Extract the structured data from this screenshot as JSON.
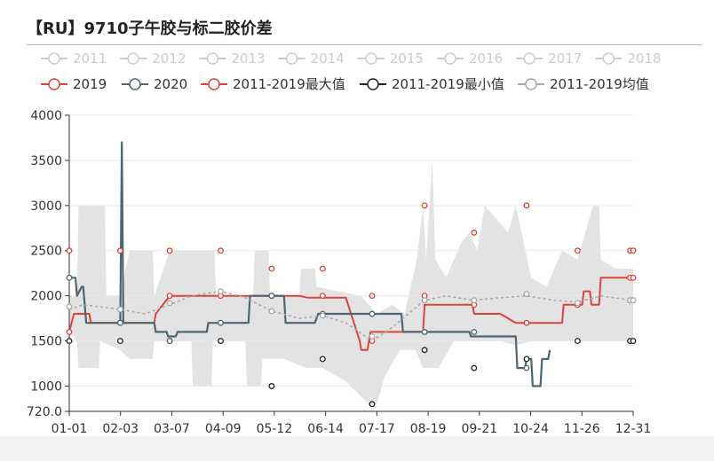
{
  "title": "【RU】9710子午胶与标二胶价差",
  "colors": {
    "s2019": "#d9453a",
    "s2020": "#4f6570",
    "max": "#d9453a",
    "min": "#222222",
    "avg": "#a9a9a9",
    "band": "#e3e3e3",
    "disabled": "#cccccc",
    "legend_text": "#333333",
    "legend_text_disabled": "#cccccc"
  },
  "legend_row1": [
    "2011",
    "2012",
    "2013",
    "2014",
    "2015",
    "2016",
    "2017",
    "2018"
  ],
  "legend_row2": [
    "2019",
    "2020",
    "2011-2019最大值",
    "2011-2019最小值",
    "2011-2019均值"
  ],
  "chart_data": {
    "type": "line",
    "title": "【RU】9710子午胶与标二胶价差",
    "xlabel": "",
    "ylabel": "",
    "x_tick_labels": [
      "01-01",
      "02-03",
      "03-07",
      "04-09",
      "05-12",
      "06-14",
      "07-17",
      "08-19",
      "09-21",
      "10-24",
      "11-26",
      "12-31"
    ],
    "y_ticks": [
      720,
      1000,
      1500,
      2000,
      2500,
      3000,
      3500,
      4000
    ],
    "y_tick_labels": [
      "720.0",
      "1000",
      "1500",
      "2000",
      "2500",
      "3000",
      "3500",
      "4000"
    ],
    "ylim": [
      720,
      4000
    ],
    "x_unit": "day_of_year",
    "xlim": [
      1,
      366
    ],
    "grid": true,
    "legend_position": "top",
    "series": [
      {
        "name": "2019",
        "key": "s2019",
        "points": [
          [
            1,
            1600
          ],
          [
            4,
            1800
          ],
          [
            14,
            1800
          ],
          [
            15,
            1700
          ],
          [
            34,
            1700
          ],
          [
            56,
            1700
          ],
          [
            57,
            1800
          ],
          [
            66,
            2000
          ],
          [
            90,
            2000
          ],
          [
            122,
            2000
          ],
          [
            150,
            2000
          ],
          [
            155,
            1980
          ],
          [
            180,
            1980
          ],
          [
            189,
            1500
          ],
          [
            190,
            1400
          ],
          [
            194,
            1400
          ],
          [
            195,
            1500
          ],
          [
            196,
            1600
          ],
          [
            216,
            1600
          ],
          [
            230,
            1600
          ],
          [
            231,
            1900
          ],
          [
            242,
            1900
          ],
          [
            262,
            1900
          ],
          [
            263,
            1800
          ],
          [
            280,
            1800
          ],
          [
            290,
            1700
          ],
          [
            301,
            1700
          ],
          [
            320,
            1700
          ],
          [
            321,
            1900
          ],
          [
            333,
            1900
          ],
          [
            334,
            2050
          ],
          [
            338,
            2050
          ],
          [
            339,
            1900
          ],
          [
            344,
            1900
          ],
          [
            345,
            2200
          ],
          [
            366,
            2200
          ]
        ]
      },
      {
        "name": "2020",
        "key": "s2020",
        "points": [
          [
            1,
            2200
          ],
          [
            5,
            2200
          ],
          [
            6,
            2000
          ],
          [
            9,
            2100
          ],
          [
            10,
            2100
          ],
          [
            12,
            1700
          ],
          [
            34,
            1700
          ],
          [
            35,
            3700
          ],
          [
            36,
            1700
          ],
          [
            56,
            1700
          ],
          [
            57,
            1600
          ],
          [
            64,
            1600
          ],
          [
            65,
            1550
          ],
          [
            70,
            1550
          ],
          [
            71,
            1600
          ],
          [
            90,
            1600
          ],
          [
            91,
            1700
          ],
          [
            117,
            1700
          ],
          [
            118,
            2000
          ],
          [
            140,
            2000
          ],
          [
            141,
            1700
          ],
          [
            160,
            1700
          ],
          [
            162,
            1800
          ],
          [
            216,
            1800
          ],
          [
            217,
            1600
          ],
          [
            245,
            1600
          ],
          [
            260,
            1600
          ],
          [
            261,
            1550
          ],
          [
            290,
            1550
          ],
          [
            291,
            1200
          ],
          [
            296,
            1200
          ],
          [
            297,
            1300
          ],
          [
            300,
            1300
          ],
          [
            301,
            1000
          ],
          [
            306,
            1000
          ],
          [
            307,
            1300
          ],
          [
            311,
            1300
          ],
          [
            312,
            1400
          ]
        ]
      },
      {
        "name": "2011-2019最大值",
        "key": "max",
        "points": [
          [
            1,
            2500
          ],
          [
            34,
            2500
          ],
          [
            66,
            2500
          ],
          [
            99,
            2500
          ],
          [
            132,
            2300
          ],
          [
            165,
            2300
          ],
          [
            197,
            2000
          ],
          [
            231,
            3000
          ],
          [
            263,
            2700
          ],
          [
            297,
            3000
          ],
          [
            330,
            2500
          ],
          [
            364,
            2500
          ],
          [
            366,
            2500
          ]
        ]
      },
      {
        "name": "2011-2019最小值",
        "key": "min",
        "points": [
          [
            1,
            1500
          ],
          [
            34,
            1500
          ],
          [
            66,
            1500
          ],
          [
            99,
            1500
          ],
          [
            132,
            1000
          ],
          [
            165,
            1300
          ],
          [
            197,
            800
          ],
          [
            231,
            1400
          ],
          [
            263,
            1200
          ],
          [
            297,
            1300
          ],
          [
            330,
            1500
          ],
          [
            364,
            1500
          ],
          [
            366,
            1500
          ]
        ]
      },
      {
        "name": "2011-2019均值",
        "key": "avg",
        "points": [
          [
            1,
            1850
          ],
          [
            10,
            1900
          ],
          [
            20,
            1880
          ],
          [
            34,
            1850
          ],
          [
            50,
            1800
          ],
          [
            66,
            1900
          ],
          [
            80,
            2000
          ],
          [
            99,
            2050
          ],
          [
            115,
            1980
          ],
          [
            132,
            1830
          ],
          [
            150,
            1750
          ],
          [
            165,
            1780
          ],
          [
            180,
            1700
          ],
          [
            197,
            1500
          ],
          [
            210,
            1650
          ],
          [
            231,
            1950
          ],
          [
            245,
            2000
          ],
          [
            263,
            1950
          ],
          [
            280,
            1980
          ],
          [
            297,
            2000
          ],
          [
            315,
            1950
          ],
          [
            330,
            1930
          ],
          [
            345,
            2000
          ],
          [
            366,
            1950
          ]
        ]
      }
    ],
    "marker_points": [
      {
        "key": "s2019",
        "points": [
          [
            1,
            1600
          ],
          [
            34,
            1700
          ],
          [
            66,
            2000
          ],
          [
            99,
            2000
          ],
          [
            132,
            2000
          ],
          [
            165,
            2000
          ],
          [
            197,
            1500
          ],
          [
            231,
            2000
          ],
          [
            263,
            1900
          ],
          [
            297,
            1700
          ],
          [
            330,
            1900
          ],
          [
            364,
            2200
          ],
          [
            366,
            2200
          ]
        ]
      },
      {
        "key": "s2020",
        "points": [
          [
            1,
            2200
          ],
          [
            34,
            1700
          ],
          [
            66,
            1500
          ],
          [
            99,
            1700
          ],
          [
            132,
            2000
          ],
          [
            165,
            1800
          ],
          [
            197,
            1800
          ],
          [
            231,
            1600
          ],
          [
            263,
            1600
          ],
          [
            297,
            1200
          ]
        ]
      },
      {
        "key": "avg",
        "points": [
          [
            1,
            1880
          ],
          [
            34,
            1850
          ],
          [
            66,
            1920
          ],
          [
            99,
            2050
          ],
          [
            132,
            1830
          ],
          [
            165,
            1780
          ],
          [
            197,
            1550
          ],
          [
            231,
            1950
          ],
          [
            263,
            1950
          ],
          [
            297,
            2020
          ],
          [
            330,
            1920
          ],
          [
            364,
            1950
          ],
          [
            366,
            1950
          ]
        ]
      }
    ],
    "band": {
      "upper": [
        [
          1,
          2000
        ],
        [
          6,
          2000
        ],
        [
          7,
          3000
        ],
        [
          24,
          3000
        ],
        [
          25,
          2000
        ],
        [
          34,
          2000
        ],
        [
          40,
          2500
        ],
        [
          55,
          2500
        ],
        [
          56,
          2000
        ],
        [
          66,
          2500
        ],
        [
          95,
          2500
        ],
        [
          96,
          2000
        ],
        [
          120,
          2000
        ],
        [
          121,
          2500
        ],
        [
          130,
          2500
        ],
        [
          131,
          2000
        ],
        [
          150,
          2000
        ],
        [
          151,
          2300
        ],
        [
          160,
          2300
        ],
        [
          161,
          2100
        ],
        [
          190,
          2000
        ],
        [
          200,
          1800
        ],
        [
          210,
          1900
        ],
        [
          218,
          1800
        ],
        [
          226,
          2400
        ],
        [
          230,
          3000
        ],
        [
          232,
          2400
        ],
        [
          236,
          3500
        ],
        [
          238,
          2400
        ],
        [
          245,
          2200
        ],
        [
          255,
          2600
        ],
        [
          260,
          2700
        ],
        [
          265,
          2500
        ],
        [
          270,
          3000
        ],
        [
          285,
          2700
        ],
        [
          290,
          3000
        ],
        [
          300,
          2200
        ],
        [
          310,
          2100
        ],
        [
          320,
          2500
        ],
        [
          330,
          2400
        ],
        [
          340,
          3000
        ],
        [
          344,
          3000
        ],
        [
          345,
          2400
        ],
        [
          355,
          2300
        ],
        [
          366,
          2300
        ]
      ],
      "lower": [
        [
          1,
          1600
        ],
        [
          6,
          1500
        ],
        [
          7,
          1200
        ],
        [
          20,
          1200
        ],
        [
          21,
          1500
        ],
        [
          34,
          1400
        ],
        [
          40,
          1300
        ],
        [
          55,
          1300
        ],
        [
          56,
          1500
        ],
        [
          80,
          1500
        ],
        [
          81,
          1000
        ],
        [
          93,
          1000
        ],
        [
          94,
          1500
        ],
        [
          115,
          1500
        ],
        [
          116,
          1000
        ],
        [
          125,
          1000
        ],
        [
          126,
          1300
        ],
        [
          140,
          1300
        ],
        [
          155,
          1200
        ],
        [
          165,
          1200
        ],
        [
          180,
          1050
        ],
        [
          195,
          800
        ],
        [
          200,
          800
        ],
        [
          205,
          1100
        ],
        [
          215,
          1400
        ],
        [
          225,
          1400
        ],
        [
          230,
          1200
        ],
        [
          240,
          1200
        ],
        [
          250,
          1500
        ],
        [
          270,
          1500
        ],
        [
          280,
          1500
        ],
        [
          290,
          1450
        ],
        [
          300,
          1500
        ],
        [
          320,
          1500
        ],
        [
          330,
          1500
        ],
        [
          345,
          1500
        ],
        [
          366,
          1500
        ]
      ]
    }
  }
}
